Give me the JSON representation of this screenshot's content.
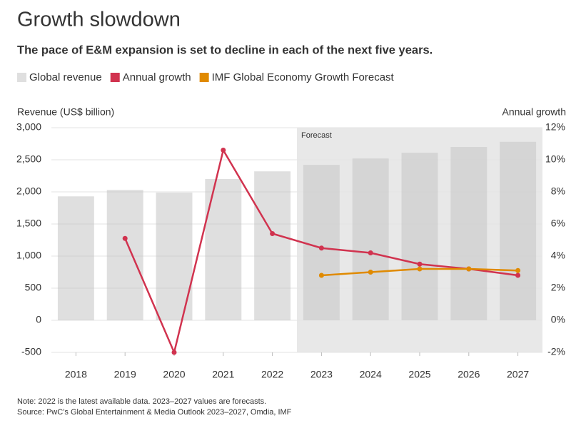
{
  "chart_data": {
    "type": "bar-line",
    "title": "Growth slowdown",
    "subtitle": "The pace of E&M expansion is set to decline in each of the next five years.",
    "y_axis_title": "Revenue (US$ billion)",
    "y2_axis_title": "Annual growth",
    "categories": [
      "2018",
      "2019",
      "2020",
      "2021",
      "2022",
      "2023",
      "2024",
      "2025",
      "2026",
      "2027"
    ],
    "series": [
      {
        "name": "Global revenue",
        "kind": "bar",
        "color": "#c4c4c4",
        "values": [
          1930,
          2030,
          1990,
          2200,
          2320,
          2420,
          2520,
          2610,
          2700,
          2780
        ]
      },
      {
        "name": "Annual growth",
        "kind": "line",
        "axis": "y2",
        "color": "#d1334f",
        "values": [
          null,
          5.1,
          -2.0,
          10.6,
          5.4,
          4.5,
          4.2,
          3.5,
          3.2,
          2.8
        ]
      },
      {
        "name": "IMF Global Economy Growth Forecast",
        "kind": "line",
        "axis": "y2",
        "color": "#e08a00",
        "values": [
          null,
          null,
          null,
          null,
          null,
          2.8,
          3.0,
          3.2,
          3.2,
          3.1
        ]
      }
    ],
    "ylim": [
      -500,
      3000
    ],
    "yticks": [
      {
        "value": 3000,
        "label": "3,000"
      },
      {
        "value": 2500,
        "label": "2,500"
      },
      {
        "value": 2000,
        "label": "2,000"
      },
      {
        "value": 1500,
        "label": "1,500"
      },
      {
        "value": 1000,
        "label": "1,000"
      },
      500,
      0,
      -500
    ],
    "y2lim": [
      -2,
      12
    ],
    "y2ticks": [
      {
        "value": 12,
        "label": "12%"
      },
      {
        "value": 10,
        "label": "10%"
      },
      {
        "value": 8,
        "label": "8%"
      },
      {
        "value": 6,
        "label": "6%"
      },
      {
        "value": 4,
        "label": "4%"
      },
      {
        "value": 2,
        "label": "2%"
      },
      {
        "value": 0,
        "label": "0%"
      },
      {
        "value": -2,
        "label": "-2%"
      }
    ],
    "grid": true,
    "forecast": {
      "label": "Forecast",
      "from": "2023"
    },
    "note": "Note: 2022 is the latest available data. 2023–2027 values are forecasts.",
    "source": "Source: PwC’s Global Entertainment & Media Outlook 2023–2027, Omdia, IMF"
  }
}
